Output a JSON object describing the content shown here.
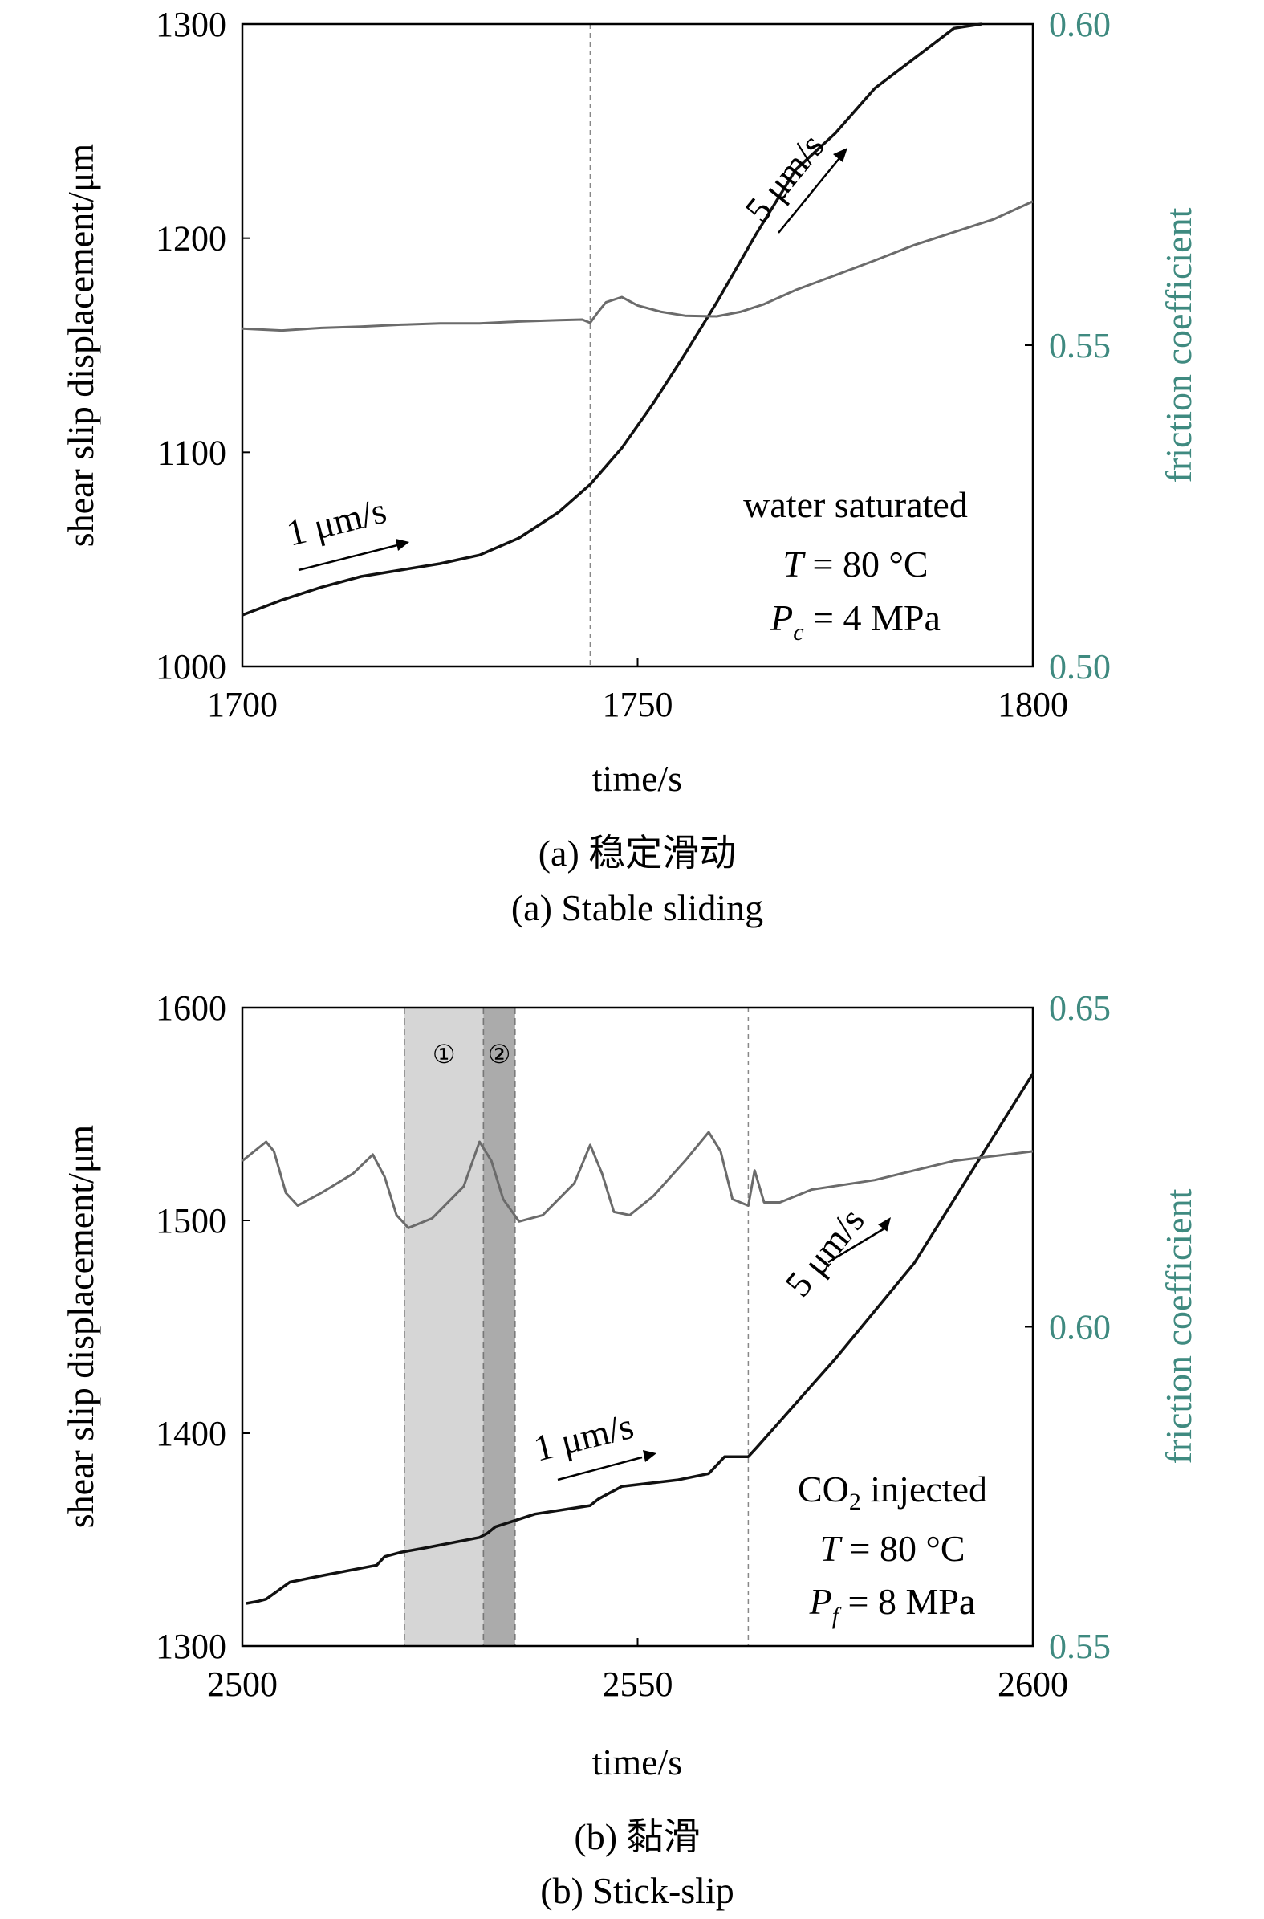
{
  "colors": {
    "displacement": "#111111",
    "friction": "#6b6b6b",
    "right_axis_text": "#3f8a80",
    "marker": "#888888",
    "shade1": "#d6d6d6",
    "shade2": "#ababab"
  },
  "chart_data": [
    {
      "type": "line",
      "caption_cn": "(a) 稳定滑动",
      "caption_en": "(a) Stable sliding",
      "xlabel": "time/s",
      "ylabel": "shear slip displacement/μm",
      "y2label": "friction coefficient",
      "xlim": [
        1700,
        1800
      ],
      "ylim": [
        1000,
        1300
      ],
      "y2lim": [
        0.5,
        0.6
      ],
      "x_ticks": [
        "1700",
        "1750",
        "1800"
      ],
      "y_ticks": [
        "1000",
        "1100",
        "1200",
        "1300"
      ],
      "y2_ticks": [
        "0.50",
        "0.55",
        "0.60"
      ],
      "vlines": [
        1744
      ],
      "annotations": {
        "rate1": "1 μm/s",
        "rate2": "5 μm/s",
        "cond1": "water saturated",
        "T_sym": "T",
        "T_val": " = 80 °C",
        "P_sym": "P",
        "P_sub": "c",
        "P_val": " = 4 MPa"
      },
      "series": [
        {
          "axis": "left",
          "x": [
            1700,
            1705,
            1710,
            1715,
            1720,
            1725,
            1730,
            1735,
            1740,
            1744,
            1748,
            1752,
            1756,
            1760,
            1765,
            1770,
            1775,
            1780,
            1785,
            1790,
            1793.5
          ],
          "values": [
            1024,
            1031,
            1037,
            1042,
            1045,
            1048,
            1052,
            1060,
            1072,
            1085,
            1102,
            1123,
            1146,
            1170,
            1202,
            1232,
            1249,
            1270,
            1284,
            1298,
            1300
          ]
        },
        {
          "axis": "right",
          "x": [
            1700,
            1705,
            1710,
            1715,
            1720,
            1725,
            1730,
            1735,
            1740,
            1743,
            1744,
            1745,
            1746,
            1748,
            1750,
            1753,
            1756,
            1760,
            1763,
            1766,
            1770,
            1775,
            1780,
            1785,
            1790,
            1795,
            1800
          ],
          "values": [
            0.5526,
            0.5523,
            0.5527,
            0.5529,
            0.5532,
            0.5534,
            0.5534,
            0.5537,
            0.5539,
            0.554,
            0.5535,
            0.5552,
            0.5567,
            0.5575,
            0.5562,
            0.5552,
            0.5546,
            0.5545,
            0.5552,
            0.5564,
            0.5586,
            0.5609,
            0.5632,
            0.5656,
            0.5676,
            0.5696,
            0.5724
          ]
        }
      ]
    },
    {
      "type": "line",
      "caption_cn": "(b) 黏滑",
      "caption_en": "(b) Stick-slip",
      "xlabel": "time/s",
      "ylabel": "shear slip displacement/μm",
      "y2label": "friction coefficient",
      "xlim": [
        2500,
        2600
      ],
      "ylim": [
        1300,
        1600
      ],
      "y2lim": [
        0.55,
        0.65
      ],
      "x_ticks": [
        "2500",
        "2550",
        "2600"
      ],
      "y_ticks": [
        "1300",
        "1400",
        "1500",
        "1600"
      ],
      "y2_ticks": [
        "0.55",
        "0.60",
        "0.65"
      ],
      "vlines": [
        2564
      ],
      "shaded_regions": [
        {
          "x0": 2520.5,
          "x1": 2530.5,
          "label": "①"
        },
        {
          "x0": 2530.5,
          "x1": 2534.5,
          "label": "②"
        }
      ],
      "annotations": {
        "rate1": "1 μm/s",
        "rate2": "5 μm/s",
        "cond_pre": "CO",
        "cond_sub": "2",
        "cond_post": " injected",
        "T_sym": "T",
        "T_val": " = 80 °C",
        "P_sym": "P",
        "P_sub": "f",
        "P_val": " = 8 MPa"
      },
      "series": [
        {
          "axis": "left",
          "x": [
            2500.5,
            2502,
            2503,
            2506,
            2510,
            2517,
            2518,
            2520,
            2523,
            2530,
            2531,
            2532,
            2537,
            2544,
            2545,
            2546,
            2548,
            2555,
            2559,
            2560,
            2561,
            2564,
            2565,
            2575,
            2585,
            2600
          ],
          "values": [
            1320,
            1321,
            1322,
            1330,
            1333,
            1338,
            1342,
            1344,
            1346,
            1351,
            1353,
            1356,
            1362,
            1366,
            1369,
            1371,
            1375,
            1378,
            1381,
            1385,
            1389,
            1389,
            1393,
            1435,
            1480,
            1569
          ]
        },
        {
          "axis": "right",
          "x": [
            2500,
            2503,
            2504,
            2505.5,
            2507,
            2510,
            2514,
            2516.5,
            2518,
            2519.5,
            2521,
            2524,
            2528,
            2530,
            2531.5,
            2533,
            2535,
            2538,
            2542,
            2544,
            2545.5,
            2547,
            2549,
            2552,
            2556,
            2559,
            2560.5,
            2562,
            2564,
            2564.8,
            2566,
            2568,
            2572,
            2580,
            2590,
            2600
          ],
          "values": [
            0.626,
            0.629,
            0.6275,
            0.621,
            0.619,
            0.621,
            0.624,
            0.627,
            0.6235,
            0.6175,
            0.6155,
            0.617,
            0.622,
            0.629,
            0.626,
            0.62,
            0.6165,
            0.6175,
            0.6225,
            0.6285,
            0.624,
            0.618,
            0.6175,
            0.6205,
            0.626,
            0.6305,
            0.6275,
            0.62,
            0.619,
            0.6245,
            0.6195,
            0.6195,
            0.6215,
            0.623,
            0.626,
            0.6275
          ]
        }
      ]
    }
  ]
}
